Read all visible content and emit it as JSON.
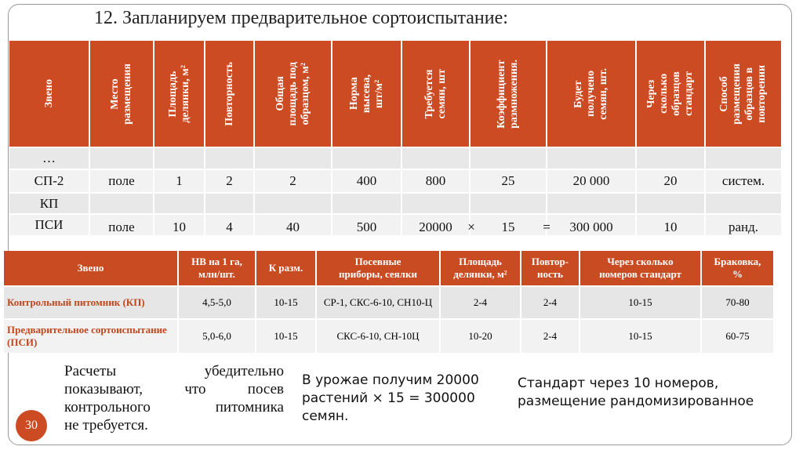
{
  "title": "12. Запланируем предварительное сортоиспытание:",
  "table1": {
    "headers": [
      [
        "Звено"
      ],
      [
        "Место",
        "размещения"
      ],
      [
        "Площадь",
        "делянки, м²"
      ],
      [
        "Повторность"
      ],
      [
        "Общая",
        "площадь под",
        "образцом, м²"
      ],
      [
        "Норма",
        "высева,",
        "шт/м²"
      ],
      [
        "Требуется",
        "семян, шт"
      ],
      [
        "Коэффициент",
        "размножения."
      ],
      [
        "Будет",
        "получено",
        "семян, шт."
      ],
      [
        "Через",
        "сколько",
        "образцов",
        "стандарт"
      ],
      [
        "Способ",
        "размещения",
        "образцов в",
        "повторении"
      ]
    ],
    "rows": [
      [
        "…",
        null,
        null,
        null,
        null,
        null,
        null,
        null,
        null,
        null,
        null
      ],
      [
        "СП-2",
        "поле",
        "1",
        "2",
        "2",
        "400",
        "800",
        "25",
        "20 000",
        "20",
        "систем."
      ],
      [
        "КП",
        null,
        null,
        null,
        null,
        null,
        null,
        null,
        null,
        null,
        null
      ],
      [
        "ПСИ",
        "поле",
        "10",
        "4",
        "40",
        "500",
        "20000",
        "15",
        "300 000",
        "10",
        "ранд."
      ]
    ],
    "operators": [
      "×",
      "="
    ]
  },
  "table2": {
    "headers": [
      [
        "Звено"
      ],
      [
        "НВ на 1 га,",
        "млн/шт."
      ],
      [
        "К разм."
      ],
      [
        "Посевные",
        "приборы, сеялки"
      ],
      [
        "Площадь",
        "делянки, м²"
      ],
      [
        "Повтор-",
        "ность"
      ],
      [
        "Через сколько",
        "номеров стандарт"
      ],
      [
        "Браковка,",
        "%"
      ]
    ],
    "rows": [
      [
        "Контрольный питомник (КП)",
        "4,5-5,0",
        "10-15",
        "СР-1, СКС-6-10, СН10-Ц",
        "2-4",
        "2-4",
        "10-15",
        "70-80"
      ],
      [
        "Предварительное сортоиспытание (ПСИ)",
        "5,0-6,0",
        "10-15",
        "СКС-6-10, СН-10Ц",
        "10-20",
        "2-4",
        "10-15",
        "60-75"
      ]
    ]
  },
  "notes": {
    "left": [
      "Расчеты убедительно",
      "показывают, что посев",
      "контрольного питомника",
      "не требуется."
    ],
    "middle": [
      "В урожае получим 20000",
      "растений × 15 = 300000",
      "семян."
    ],
    "right": [
      "Стандарт через 10 номеров,",
      "размещение рандомизированное"
    ]
  },
  "page_number": "30"
}
